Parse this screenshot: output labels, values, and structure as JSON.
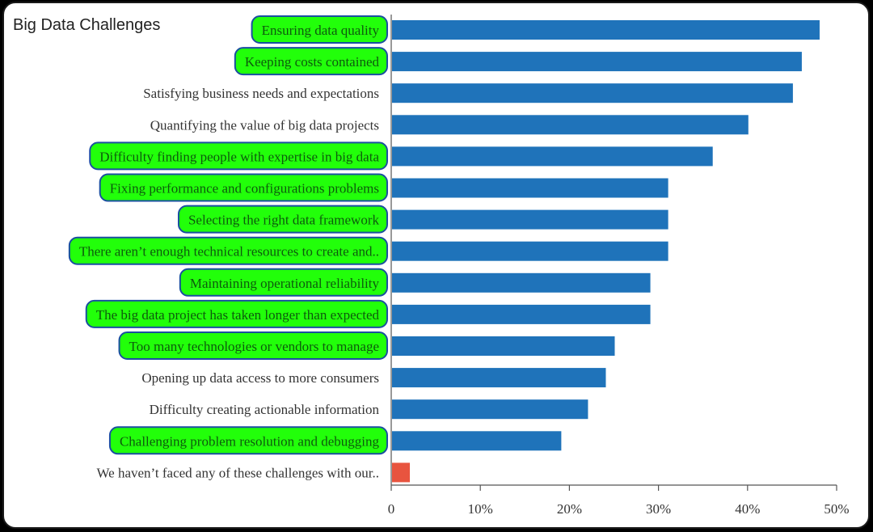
{
  "chart_data": {
    "type": "bar",
    "orientation": "horizontal",
    "title": "Big Data Challenges",
    "xlabel": "",
    "ylabel": "",
    "xlim": [
      0,
      50
    ],
    "ticks": [
      {
        "value": 0,
        "label": "0"
      },
      {
        "value": 10,
        "label": "10%"
      },
      {
        "value": 20,
        "label": "20%"
      },
      {
        "value": 30,
        "label": "30%"
      },
      {
        "value": 40,
        "label": "40%"
      },
      {
        "value": 50,
        "label": "50%"
      }
    ],
    "categories": [
      "Ensuring data quality",
      "Keeping costs contained",
      "Satisfying business needs and expectations",
      "Quantifying the value of big data projects",
      "Difficulty finding people with expertise in big data",
      "Fixing performance and configurations problems",
      "Selecting the right data framework",
      "There aren’t enough technical resources to create and..",
      "Maintaining operational reliability",
      "The big data project has taken longer than expected",
      "Too many technologies or vendors to manage",
      "Opening up data access to more consumers",
      "Difficulty creating actionable information",
      "Challenging problem resolution and debugging",
      "We haven’t faced any of these challenges with our.."
    ],
    "values": [
      48,
      46,
      45,
      40,
      36,
      31,
      31,
      31,
      29,
      29,
      25,
      24,
      22,
      19,
      2
    ],
    "highlighted": [
      true,
      true,
      false,
      false,
      true,
      true,
      true,
      true,
      true,
      true,
      true,
      false,
      false,
      true,
      false
    ],
    "grid": false,
    "colors": {
      "bar": "#1f73ba",
      "bar_alt": "#e8543f",
      "highlight_fill": "#22ff0a",
      "highlight_border": "#1a4fa0",
      "label": "#333333",
      "label_on_highlight": "#0d5a0d",
      "axis": "#555555"
    }
  }
}
